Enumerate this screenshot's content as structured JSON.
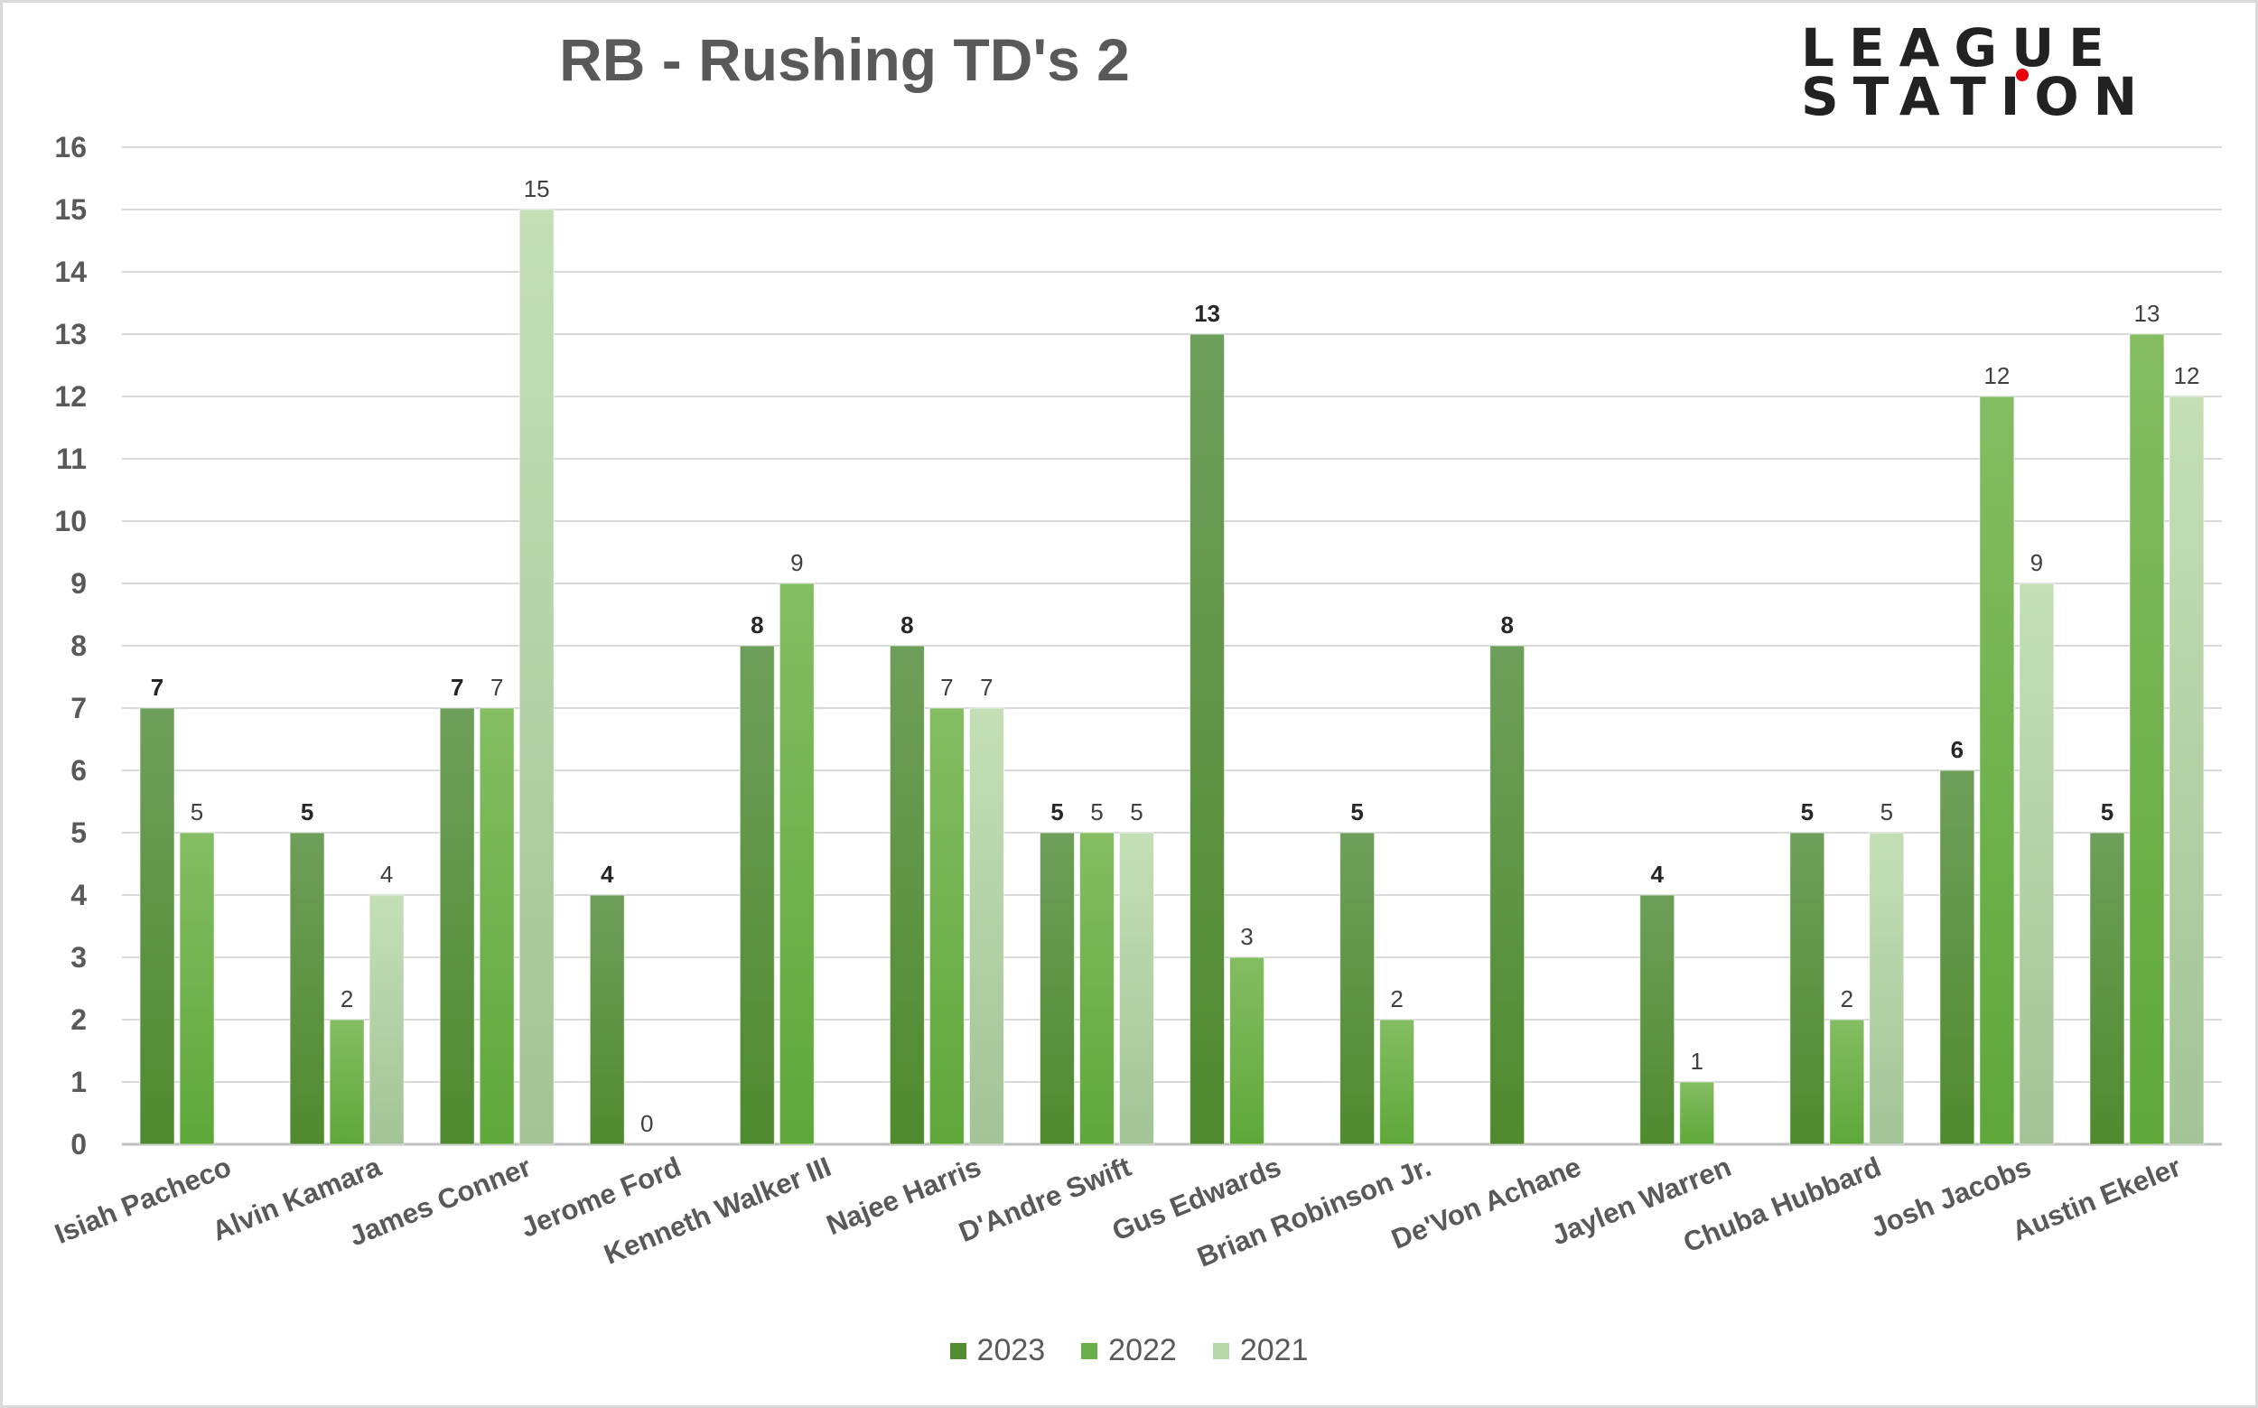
{
  "chart_data": {
    "type": "bar",
    "title": "RB - Rushing TD's 2",
    "xlabel": "",
    "ylabel": "",
    "ylim": [
      0,
      16
    ],
    "yticks": [
      "0",
      "1",
      "2",
      "3",
      "4",
      "5",
      "6",
      "7",
      "8",
      "9",
      "10",
      "11",
      "12",
      "13",
      "14",
      "15",
      "16"
    ],
    "grid": true,
    "legend_position": "bottom",
    "categories": [
      "Isiah Pacheco",
      "Alvin Kamara",
      "James Conner",
      "Jerome Ford",
      "Kenneth Walker III",
      "Najee Harris",
      "D'Andre Swift",
      "Gus Edwards",
      "Brian Robinson Jr.",
      "De'Von Achane",
      "Jaylen Warren",
      "Chuba Hubbard",
      "Josh Jacobs",
      "Austin Ekeler"
    ],
    "series": [
      {
        "name": "2023",
        "color_top": "#6e9f5a",
        "color_bottom": "#4f8a2e",
        "values": [
          7,
          5,
          7,
          4,
          8,
          8,
          5,
          13,
          5,
          8,
          4,
          5,
          6,
          5
        ],
        "labels": [
          "7",
          "5",
          "7",
          "4",
          "8",
          "8",
          "5",
          "13",
          "5",
          "8",
          "4",
          "5",
          "6",
          "5"
        ]
      },
      {
        "name": "2022",
        "color_top": "#84bd62",
        "color_bottom": "#5ea83a",
        "values": [
          5,
          2,
          7,
          0,
          9,
          7,
          5,
          3,
          2,
          null,
          1,
          2,
          12,
          13
        ],
        "labels": [
          "5",
          "2",
          "7",
          "0",
          "9",
          "7",
          "5",
          "3",
          "2",
          "",
          "1",
          "2",
          "12",
          "13"
        ]
      },
      {
        "name": "2021",
        "color_top": "#c4dfb6",
        "color_bottom": "#a2c496",
        "values": [
          null,
          4,
          15,
          null,
          null,
          7,
          5,
          null,
          null,
          null,
          null,
          5,
          9,
          12
        ],
        "labels": [
          "",
          "4",
          "15",
          "",
          "",
          "7",
          "5",
          "",
          "",
          "",
          "",
          "5",
          "9",
          "12"
        ]
      }
    ]
  },
  "logo": {
    "line1": "LEAGUE",
    "line2": "STATION"
  },
  "legend": {
    "item1": "2023",
    "item2": "2022",
    "item3": "2021"
  },
  "colors": {
    "legend1": "#538c33",
    "legend2": "#6ab04a",
    "legend3": "#b9d8aa"
  }
}
